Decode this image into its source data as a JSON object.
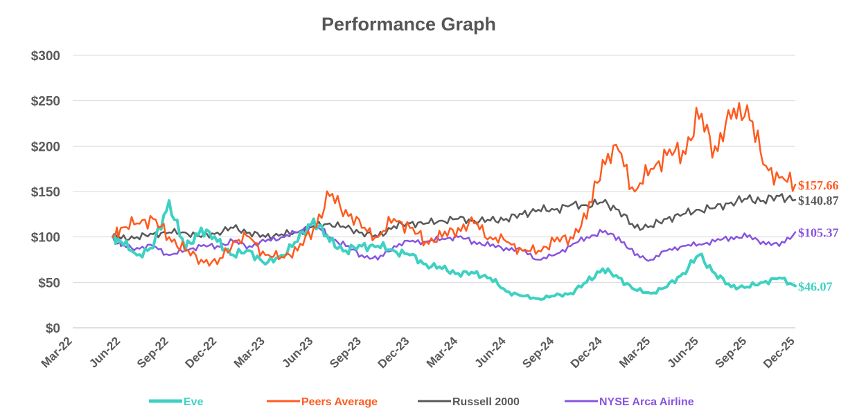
{
  "chart_data": {
    "type": "line",
    "title": "Performance Graph",
    "xlabel": "",
    "ylabel": "",
    "ylim": [
      0,
      300
    ],
    "y_ticks": [
      0,
      50,
      100,
      150,
      200,
      250,
      300
    ],
    "y_tick_labels": [
      "$0",
      "$50",
      "$100",
      "$150",
      "$200",
      "$250",
      "$300"
    ],
    "x_ticks": [
      "Mar-22",
      "Jun-22",
      "Sep-22",
      "Dec-22",
      "Mar-23",
      "Jun-23",
      "Sep-23",
      "Dec-23",
      "Mar-24",
      "Jun-24",
      "Sep-24",
      "Dec-24",
      "Mar-25",
      "Jun-25",
      "Sep-25",
      "Dec-25"
    ],
    "x_dates": [
      "2022-05",
      "2022-06",
      "2022-07",
      "2022-08",
      "2022-09",
      "2022-10",
      "2022-11",
      "2022-12",
      "2023-01",
      "2023-02",
      "2023-03",
      "2023-04",
      "2023-05",
      "2023-06",
      "2023-07",
      "2023-08",
      "2023-09",
      "2023-10",
      "2023-11",
      "2023-12",
      "2024-01",
      "2024-02",
      "2024-03",
      "2024-04",
      "2024-05",
      "2024-06",
      "2024-07",
      "2024-08",
      "2024-09",
      "2024-10",
      "2024-11",
      "2024-12",
      "2025-01",
      "2025-02",
      "2025-03",
      "2025-04",
      "2025-05",
      "2025-06",
      "2025-07",
      "2025-08",
      "2025-09",
      "2025-10",
      "2025-11",
      "2025-12"
    ],
    "grid": true,
    "legend_position": "bottom",
    "series": [
      {
        "name": "Eve",
        "color": "#3ED1C2",
        "end_label": "$46.07",
        "values": [
          100,
          95,
          80,
          88,
          140,
          85,
          110,
          95,
          80,
          85,
          70,
          80,
          95,
          120,
          95,
          85,
          90,
          90,
          85,
          80,
          70,
          65,
          60,
          60,
          55,
          40,
          35,
          32,
          35,
          38,
          50,
          65,
          55,
          42,
          38,
          45,
          60,
          80,
          60,
          45,
          45,
          50,
          55,
          46.07
        ]
      },
      {
        "name": "Peers Average",
        "color": "#FF5A1F",
        "end_label": "$157.66",
        "values": [
          100,
          110,
          115,
          120,
          100,
          85,
          75,
          70,
          95,
          100,
          80,
          78,
          85,
          110,
          145,
          130,
          110,
          100,
          120,
          110,
          95,
          100,
          110,
          115,
          100,
          95,
          85,
          85,
          95,
          100,
          120,
          185,
          195,
          150,
          175,
          190,
          195,
          230,
          200,
          230,
          245,
          180,
          165,
          157.66
        ]
      },
      {
        "name": "Russell 2000",
        "color": "#595959",
        "end_label": "$140.87",
        "values": [
          100,
          98,
          100,
          103,
          105,
          105,
          100,
          105,
          110,
          105,
          100,
          103,
          105,
          112,
          115,
          110,
          105,
          100,
          112,
          115,
          115,
          118,
          120,
          118,
          118,
          120,
          125,
          130,
          130,
          135,
          135,
          138,
          130,
          110,
          112,
          120,
          125,
          130,
          132,
          138,
          142,
          140,
          145,
          140.87
        ]
      },
      {
        "name": "NYSE Arca Airline",
        "color": "#8754E0",
        "end_label": "$105.37",
        "values": [
          100,
          90,
          88,
          90,
          80,
          85,
          90,
          90,
          95,
          90,
          95,
          100,
          105,
          115,
          100,
          90,
          80,
          75,
          90,
          95,
          95,
          98,
          100,
          95,
          90,
          88,
          85,
          75,
          80,
          90,
          100,
          105,
          100,
          80,
          75,
          85,
          90,
          92,
          95,
          100,
          100,
          95,
          90,
          105.37
        ]
      }
    ]
  }
}
